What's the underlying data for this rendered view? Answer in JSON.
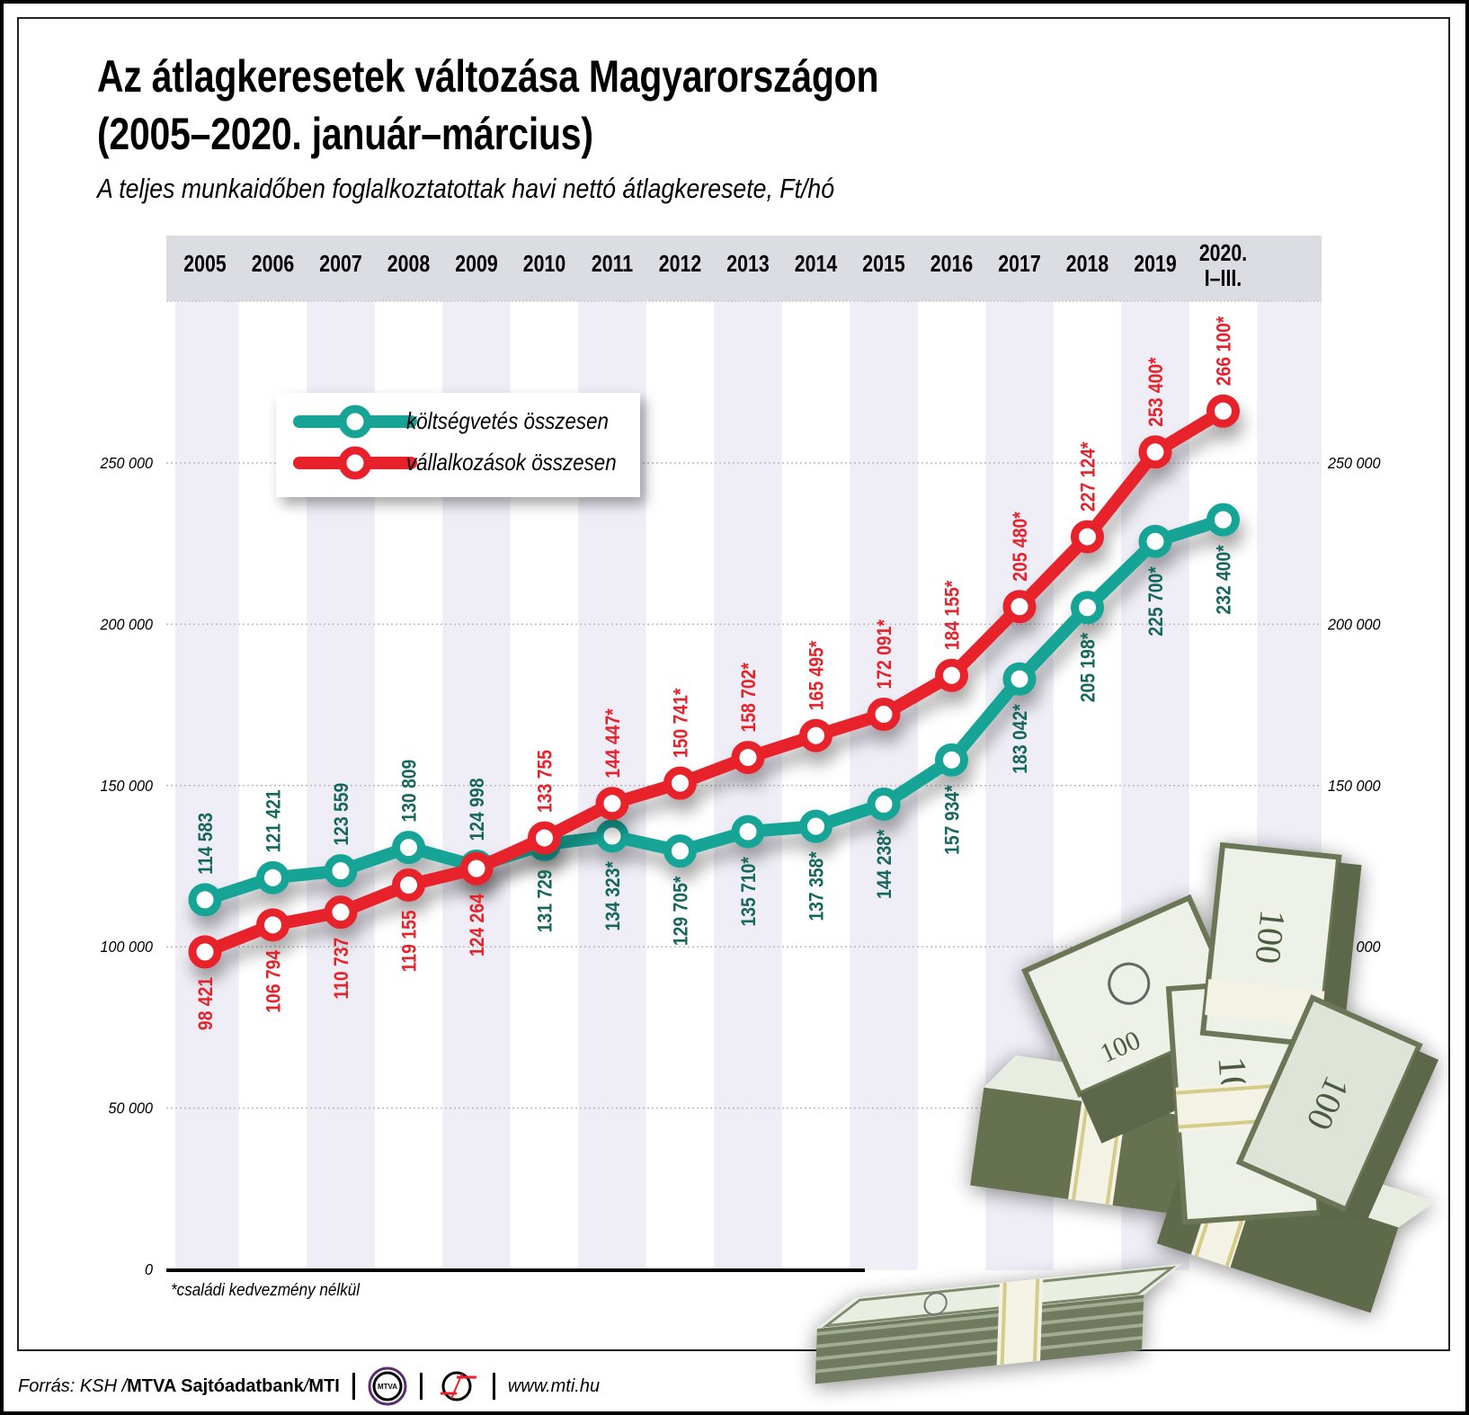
{
  "header": {
    "title_line1": "Az átlagkeresetek változása Magyarországon",
    "title_line2": "(2005–2020. január–március)",
    "subtitle": "A teljes munkaidőben foglalkoztatottak havi nettó átlagkeresete, Ft/hó"
  },
  "legend": {
    "items": [
      {
        "label": "költségvetés összesen",
        "color": "#17a497"
      },
      {
        "label": "vállalkozások összesen",
        "color": "#e8202a"
      }
    ]
  },
  "footnote": "*családi kedvezmény nélkül",
  "footer": {
    "source_prefix": "Forrás: KSH / ",
    "source_bold1": "MTVA Sajtóadatbank",
    "source_sep": " / ",
    "source_bold2": "MTI",
    "logo1_text": "MTVA",
    "url": "www.mti.hu"
  },
  "colors": {
    "teal": "#17a497",
    "teal_label": "#15665c",
    "red": "#e8202a",
    "header_band": "#dcdce3",
    "stripe": "#efedf5"
  },
  "chart_data": {
    "type": "line",
    "title": "Az átlagkeresetek változása Magyarországon (2005–2020. január–március)",
    "subtitle": "A teljes munkaidőben foglalkoztatottak havi nettó átlagkeresete, Ft/hó",
    "xlabel": "",
    "ylabel": "Ft/hó",
    "categories": [
      "2005",
      "2006",
      "2007",
      "2008",
      "2009",
      "2010",
      "2011",
      "2012",
      "2013",
      "2014",
      "2015",
      "2016",
      "2017",
      "2018",
      "2019",
      "2020. I–III."
    ],
    "yticks": [
      0,
      50000,
      100000,
      150000,
      200000,
      250000
    ],
    "ytick_labels": [
      "0",
      "50 000",
      "100 000",
      "150 000",
      "200 000",
      "250 000"
    ],
    "ylim": [
      0,
      250000
    ],
    "grid": "dotted horizontal",
    "legend_position": "upper-left",
    "series": [
      {
        "name": "költségvetés összesen",
        "color": "#17a497",
        "values": [
          114583,
          121421,
          123559,
          130809,
          124998,
          131729,
          134323,
          129705,
          135710,
          137358,
          144238,
          157934,
          183042,
          205198,
          225700,
          232400
        ],
        "labels": [
          "114 583",
          "121 421",
          "123 559",
          "130 809",
          "124 998",
          "131 729",
          "134 323*",
          "129 705*",
          "135 710*",
          "137 358*",
          "144 238*",
          "157 934*",
          "183 042*",
          "205 198*",
          "225 700*",
          "232 400*"
        ],
        "label_side": [
          "above",
          "above",
          "above",
          "above",
          "above",
          "below",
          "below",
          "below",
          "below",
          "below",
          "below",
          "below",
          "below",
          "below",
          "below",
          "below"
        ]
      },
      {
        "name": "vállalkozások összesen",
        "color": "#e8202a",
        "values": [
          98421,
          106794,
          110737,
          119155,
          124264,
          133755,
          144447,
          150741,
          158702,
          165495,
          172091,
          184155,
          205480,
          227124,
          253400,
          266100
        ],
        "labels": [
          "98 421",
          "106 794",
          "110 737",
          "119 155",
          "124 264",
          "133 755",
          "144 447*",
          "150 741*",
          "158 702*",
          "165 495*",
          "172 091*",
          "184 155*",
          "205 480*",
          "227 124*",
          "253 400*",
          "266 100*"
        ],
        "label_side": [
          "below",
          "below",
          "below",
          "below",
          "below",
          "above",
          "above",
          "above",
          "above",
          "above",
          "above",
          "above",
          "above",
          "above",
          "above",
          "above"
        ]
      }
    ],
    "annotations": [
      "*családi kedvezmény nélkül"
    ]
  }
}
